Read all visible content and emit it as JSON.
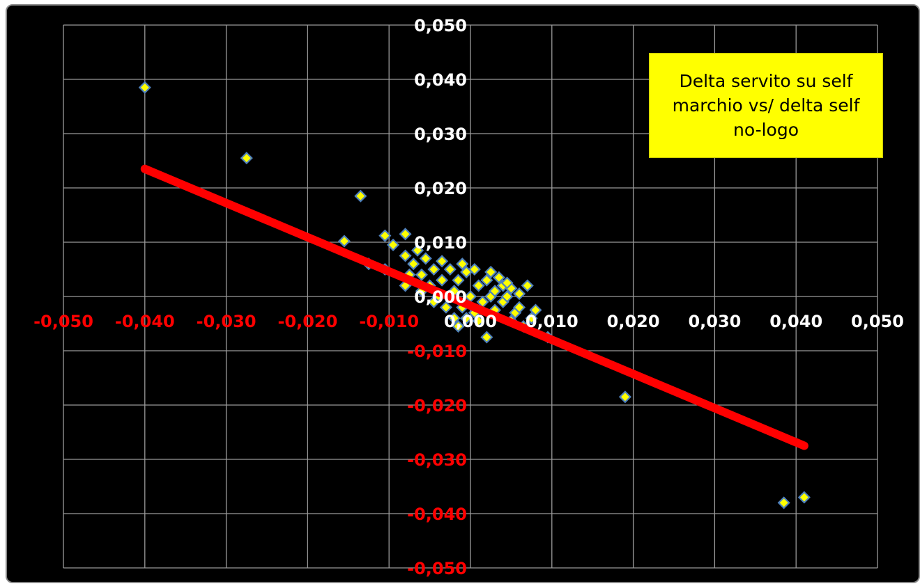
{
  "chart_data": {
    "type": "scatter",
    "title": "",
    "annotation": "Delta servito su self marchio vs/ delta self no-logo",
    "xlim": [
      -0.05,
      0.05
    ],
    "ylim": [
      -0.05,
      0.05
    ],
    "x_ticks": [
      "-0,050",
      "-0,040",
      "-0,030",
      "-0,020",
      "-0,010",
      "0,000",
      "0,010",
      "0,020",
      "0,030",
      "0,040",
      "0,050"
    ],
    "y_ticks": [
      "0,050",
      "0,040",
      "0,030",
      "0,020",
      "0,010",
      "0,000",
      "-0,010",
      "-0,020",
      "-0,030",
      "-0,040",
      "-0,050"
    ],
    "grid": true,
    "colors": {
      "background": "#000000",
      "grid": "#9a9a9a",
      "marker_fill": "#ffff00",
      "marker_edge": "#4f81bd",
      "trendline": "#ff0000",
      "negative_tick": "#ff0000",
      "positive_tick": "#ffffff"
    },
    "series": [
      {
        "points": [
          [
            -0.04,
            0.0385
          ],
          [
            -0.0275,
            0.0255
          ],
          [
            -0.0135,
            0.0185
          ],
          [
            -0.0155,
            0.0102
          ],
          [
            -0.0105,
            0.0112
          ],
          [
            -0.0125,
            0.006
          ],
          [
            -0.0105,
            0.005
          ],
          [
            -0.008,
            0.0115
          ],
          [
            -0.0095,
            0.0095
          ],
          [
            -0.008,
            0.0075
          ],
          [
            -0.007,
            0.006
          ],
          [
            -0.0065,
            0.0085
          ],
          [
            -0.006,
            0.004
          ],
          [
            -0.0055,
            0.007
          ],
          [
            -0.005,
            0.002
          ],
          [
            -0.008,
            0.002
          ],
          [
            -0.0075,
            0.004
          ],
          [
            -0.0045,
            0.005
          ],
          [
            -0.004,
            0.0
          ],
          [
            -0.0035,
            0.003
          ],
          [
            -0.003,
            -0.002
          ],
          [
            -0.0025,
            0.005
          ],
          [
            -0.002,
            0.001
          ],
          [
            -0.002,
            -0.004
          ],
          [
            -0.0015,
            0.003
          ],
          [
            -0.001,
            -0.002
          ],
          [
            -0.001,
            0.006
          ],
          [
            -0.0015,
            -0.0055
          ],
          [
            -0.0005,
            0.0045
          ],
          [
            0.0,
            0.0
          ],
          [
            0.0005,
            0.005
          ],
          [
            0.0005,
            -0.003
          ],
          [
            0.001,
            0.002
          ],
          [
            0.0015,
            -0.001
          ],
          [
            0.002,
            0.003
          ],
          [
            0.002,
            -0.0075
          ],
          [
            0.0025,
            0.0
          ],
          [
            0.003,
            0.001
          ],
          [
            0.003,
            -0.0025
          ],
          [
            0.0035,
            0.0035
          ],
          [
            0.004,
            -0.001
          ],
          [
            0.004,
            0.002
          ],
          [
            0.0045,
            0.0
          ],
          [
            0.005,
            -0.0045
          ],
          [
            0.005,
            0.0015
          ],
          [
            0.0055,
            -0.003
          ],
          [
            0.006,
            0.0005
          ],
          [
            0.006,
            -0.002
          ],
          [
            0.0065,
            -0.0055
          ],
          [
            0.007,
            0.002
          ],
          [
            0.0075,
            -0.004
          ],
          [
            0.008,
            -0.0025
          ],
          [
            -0.0005,
            -0.004
          ],
          [
            0.001,
            -0.0045
          ],
          [
            -0.0045,
            -0.001
          ],
          [
            -0.0035,
            0.0065
          ],
          [
            0.0025,
            0.0045
          ],
          [
            0.0045,
            0.0025
          ],
          [
            -0.006,
            0.001
          ],
          [
            0.0095,
            -0.0075
          ],
          [
            0.019,
            -0.0185
          ],
          [
            0.0385,
            -0.038
          ],
          [
            0.041,
            -0.037
          ]
        ]
      }
    ],
    "trendline": {
      "x": [
        -0.04,
        0.041
      ],
      "y": [
        0.0235,
        -0.0275
      ]
    }
  }
}
